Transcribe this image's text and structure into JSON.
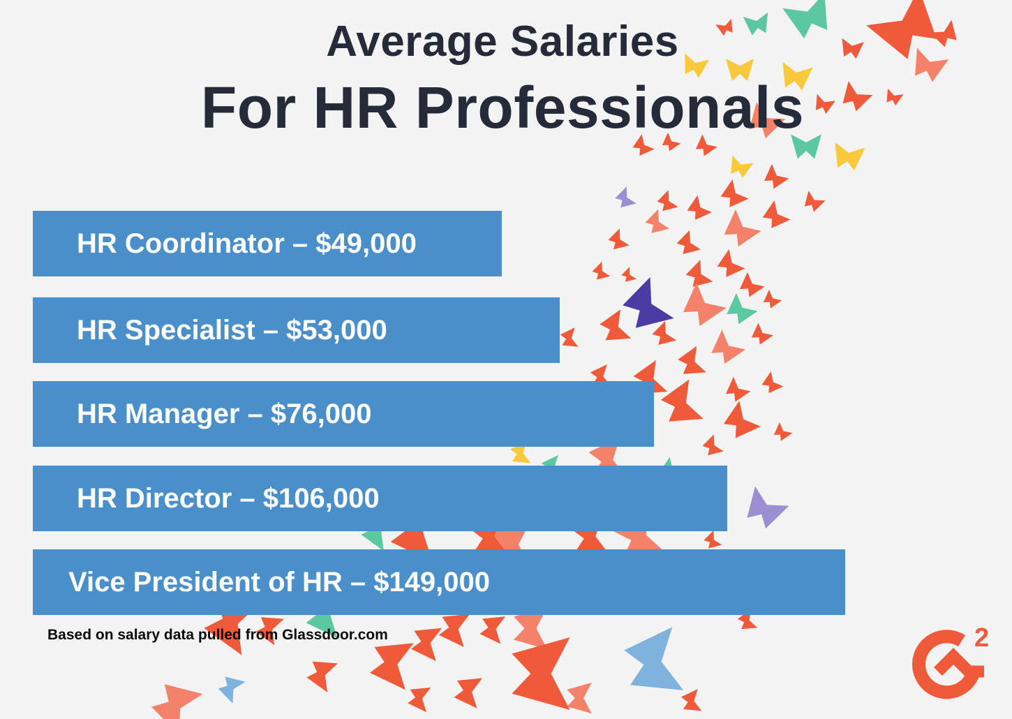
{
  "title": {
    "line1": "Average Salaries",
    "line2": "For HR Professionals"
  },
  "chart_data": {
    "type": "bar",
    "orientation": "horizontal",
    "categories": [
      "HR Coordinator",
      "HR Specialist",
      "HR Manager",
      "HR Director",
      "Vice President of HR"
    ],
    "values": [
      49000,
      53000,
      76000,
      106000,
      149000
    ],
    "labels": [
      "HR Coordinator – $49,000",
      "HR Specialist – $53,000",
      "HR Manager – $76,000",
      "HR Director – $106,000",
      "Vice President of HR – $149,000"
    ],
    "bar_color": "#4a8fc9",
    "grid": false,
    "legend": "none"
  },
  "source_note": "Based on salary data pulled from Glassdoor.com",
  "logo": {
    "name": "G2",
    "color": "#ef5a3a"
  },
  "decoration_colors": [
    "#ef5a3a",
    "#f4826a",
    "#f9c93b",
    "#5cc8a1",
    "#9b8fd1",
    "#4b3ca4",
    "#7fb3de"
  ]
}
